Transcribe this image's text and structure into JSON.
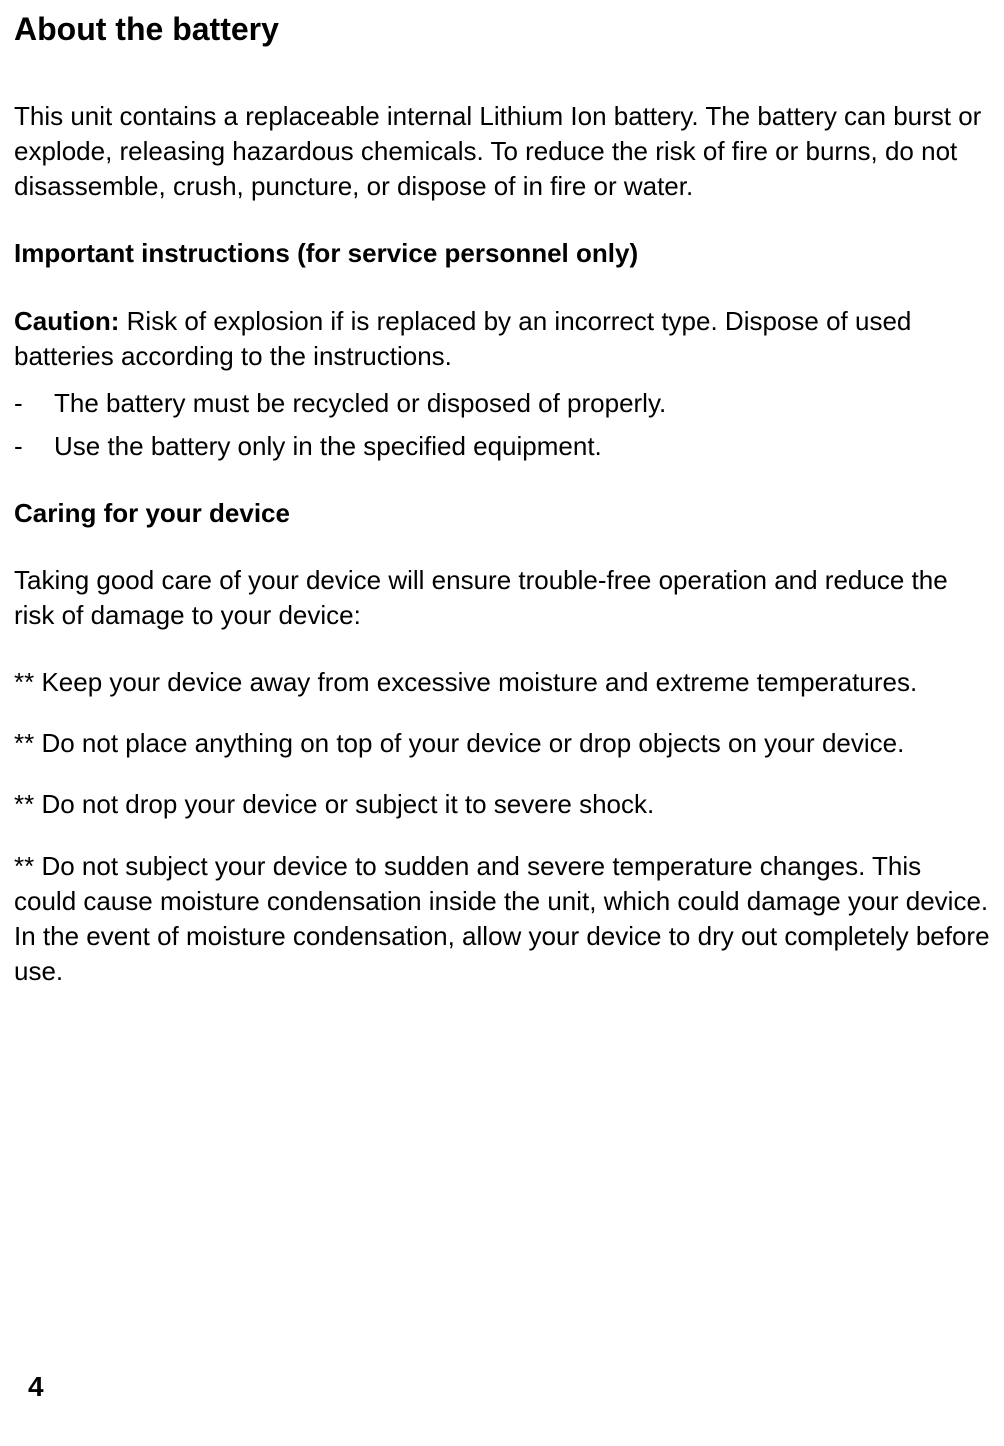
{
  "text_color": "#000000",
  "background_color": "#ffffff",
  "font_family": "Arial, Helvetica, sans-serif",
  "body_fontsize": 26,
  "heading1_fontsize": 32,
  "heading2_fontsize": 26,
  "heading1": "About the battery",
  "para1": "This unit contains a replaceable internal Lithium Ion battery. The battery can burst or explode, releasing hazardous chemicals. To reduce the risk of fire or burns, do not disassemble, crush, puncture, or dispose of in fire or water.",
  "heading2_a": "Important instructions (for service personnel only)",
  "caution_label": "Caution:",
  "caution_text": " Risk of explosion if is replaced by an incorrect type. Dispose of used batteries according to the instructions.",
  "bullets_a": [
    "The battery must be recycled or disposed of properly.",
    "Use the battery only in the specified equipment."
  ],
  "heading2_b": "Caring for your device",
  "para2": "Taking good care of your device will ensure trouble-free operation and reduce the risk of damage to your device:",
  "star_bullets": [
    "** Keep your device away from excessive moisture and extreme temperatures.",
    "** Do not place anything on top of your device or drop objects on your device.",
    "** Do not drop your device or subject it to severe shock.",
    "** Do not subject your device to sudden and severe temperature changes. This could cause moisture condensation inside the unit, which could damage your device. In the event of moisture condensation, allow your device to dry out completely before use."
  ],
  "page_number": "4"
}
